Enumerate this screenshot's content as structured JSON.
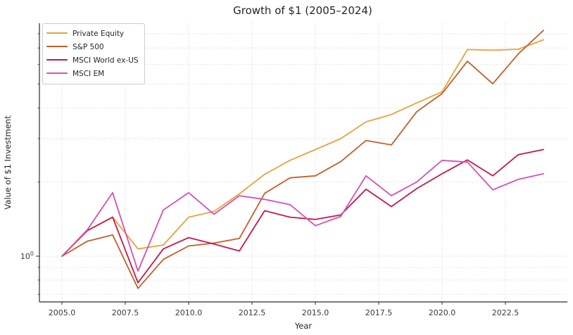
{
  "figure": {
    "background": "#ffffff",
    "title_color": "#262626",
    "tick_color": "#3a3a3a",
    "spine_color": "#2b2b2b",
    "grid_color": "#cbcbcb",
    "legend_border": "#cccccc"
  },
  "chart_data": {
    "type": "line",
    "title": "Growth of $1 (2005–2024)",
    "xlabel": "Year",
    "ylabel": "Value of $1 Investment",
    "yscale": "log",
    "grid": true,
    "legend_position": "upper left",
    "xlim": [
      2004.1,
      2024.95
    ],
    "ylim": [
      0.65,
      8.8
    ],
    "x": [
      2005,
      2006,
      2007,
      2008,
      2009,
      2010,
      2011,
      2012,
      2013,
      2014,
      2015,
      2016,
      2017,
      2018,
      2019,
      2020,
      2021,
      2022,
      2023,
      2024
    ],
    "series": [
      {
        "name": "Private Equity",
        "color": "#e7a33b",
        "values": [
          1.0,
          1.27,
          1.44,
          1.07,
          1.11,
          1.44,
          1.52,
          1.79,
          2.15,
          2.45,
          2.71,
          3.0,
          3.51,
          3.76,
          4.19,
          4.65,
          6.9,
          6.86,
          6.92,
          7.56
        ]
      },
      {
        "name": "S&P 500",
        "color": "#c55f26",
        "values": [
          1.0,
          1.15,
          1.22,
          0.74,
          0.97,
          1.1,
          1.13,
          1.18,
          1.8,
          2.08,
          2.12,
          2.42,
          2.95,
          2.83,
          3.86,
          4.57,
          6.19,
          5.01,
          6.61,
          8.25
        ]
      },
      {
        "name": "MSCI World ex-US",
        "color": "#c01a4d",
        "values": [
          1.0,
          1.27,
          1.44,
          0.78,
          1.07,
          1.19,
          1.12,
          1.05,
          1.53,
          1.44,
          1.41,
          1.47,
          1.87,
          1.59,
          1.88,
          2.16,
          2.46,
          2.12,
          2.58,
          2.71
        ]
      },
      {
        "name": "MSCI EM",
        "color": "#d650b5",
        "values": [
          1.0,
          1.28,
          1.81,
          0.87,
          1.54,
          1.81,
          1.48,
          1.76,
          1.7,
          1.62,
          1.33,
          1.45,
          2.12,
          1.76,
          2.0,
          2.45,
          2.41,
          1.86,
          2.05,
          2.16
        ]
      }
    ],
    "x_ticks": [
      {
        "value": 2005.0,
        "label": "2005.0"
      },
      {
        "value": 2007.5,
        "label": "2007.5"
      },
      {
        "value": 2010.0,
        "label": "2010.0"
      },
      {
        "value": 2012.5,
        "label": "2012.5"
      },
      {
        "value": 2015.0,
        "label": "2015.0"
      },
      {
        "value": 2017.5,
        "label": "2017.5"
      },
      {
        "value": 2020.0,
        "label": "2020.0"
      },
      {
        "value": 2022.5,
        "label": "2022.5"
      }
    ],
    "y_major_tick": {
      "value": 1,
      "label_base": "10",
      "label_exp": "0"
    },
    "y_minor_ticks": [
      0.7,
      0.8,
      0.9,
      2,
      3,
      4,
      5,
      6,
      7,
      8
    ]
  }
}
